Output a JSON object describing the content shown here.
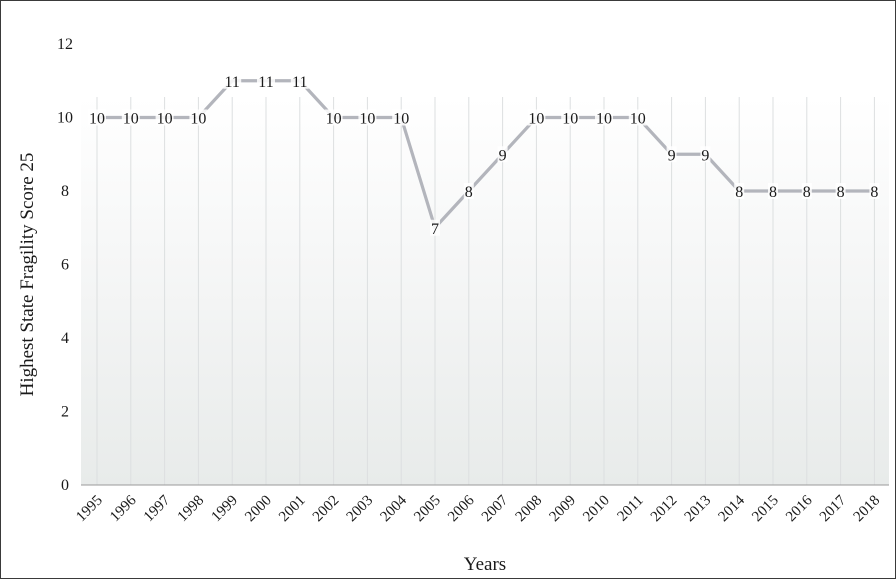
{
  "chart_data": {
    "type": "line",
    "title": "",
    "xlabel": "Years",
    "ylabel": "Highest State Fragility Score 25",
    "ylim": [
      0,
      12
    ],
    "yticks": [
      0,
      2,
      4,
      6,
      8,
      10,
      12
    ],
    "categories": [
      "1995",
      "1996",
      "1997",
      "1998",
      "1999",
      "2000",
      "2001",
      "2002",
      "2003",
      "2004",
      "2005",
      "2006",
      "2007",
      "2008",
      "2009",
      "2010",
      "2011",
      "2012",
      "2013",
      "2014",
      "2015",
      "2016",
      "2017",
      "2018"
    ],
    "series": [
      {
        "values": [
          10,
          10,
          10,
          10,
          11,
          11,
          11,
          10,
          10,
          10,
          7,
          8,
          9,
          10,
          10,
          10,
          10,
          9,
          9,
          8,
          8,
          8,
          8,
          8
        ],
        "color": "#b3b5bc"
      }
    ],
    "grid": "vertical",
    "legend": "none",
    "data_labels": true
  }
}
